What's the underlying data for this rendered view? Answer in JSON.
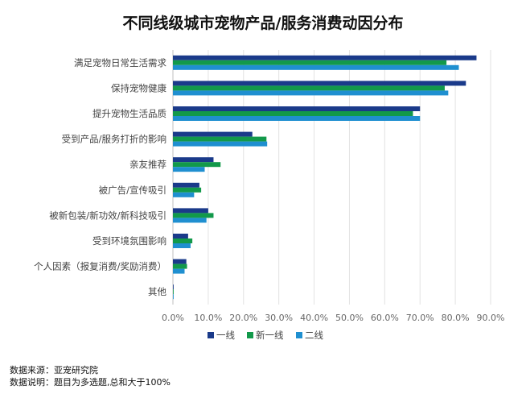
{
  "chart_data": {
    "type": "bar",
    "orientation": "horizontal",
    "title": "不同线级城市宠物产品/服务消费动因分布",
    "categories": [
      "满足宠物日常生活需求",
      "保持宠物健康",
      "提升宠物生活品质",
      "受到产品/服务打折的影响",
      "亲友推荐",
      "被广告/宣传吸引",
      "被新包装/新功效/新科技吸引",
      "受到环境氛围影响",
      "个人因素（报复消费/奖励消费）",
      "其他"
    ],
    "series": [
      {
        "name": "一线",
        "color": "#1a3a8a",
        "values": [
          86.0,
          83.0,
          70.0,
          22.5,
          11.5,
          7.5,
          10.0,
          4.3,
          3.8,
          0.2
        ]
      },
      {
        "name": "新一线",
        "color": "#12994a",
        "values": [
          77.5,
          77.0,
          68.0,
          26.5,
          13.5,
          8.0,
          11.5,
          5.5,
          4.0,
          0.2
        ]
      },
      {
        "name": "二线",
        "color": "#1f8fd0",
        "values": [
          81.0,
          78.0,
          70.0,
          26.7,
          9.0,
          6.0,
          9.5,
          5.0,
          3.3,
          0.2
        ]
      }
    ],
    "xlim": [
      0,
      90
    ],
    "xticks": [
      "0.0%",
      "10.0%",
      "20.0%",
      "30.0%",
      "40.0%",
      "50.0%",
      "60.0%",
      "70.0%",
      "80.0%",
      "90.0%"
    ],
    "grid": true,
    "legend_position": "bottom"
  },
  "notes": {
    "source": "数据来源：亚宠研究院",
    "description": "数据说明：题目为多选题,总和大于100%"
  }
}
